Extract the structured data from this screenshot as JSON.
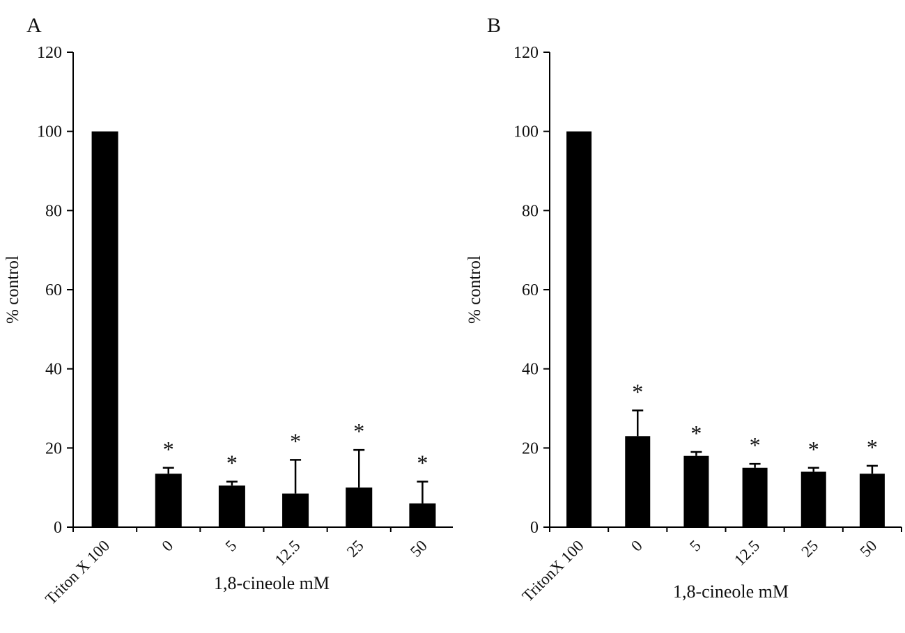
{
  "figure": {
    "background": "#ffffff",
    "bar_color": "#000000",
    "axis_color": "#000000",
    "text_color": "#111111"
  },
  "chart_data": [
    {
      "type": "bar",
      "panel_label": "A",
      "title": "",
      "ylabel": "% control",
      "xlabel": "1,8-cineole mM",
      "ylim": [
        0,
        120
      ],
      "yticks": [
        0,
        20,
        40,
        60,
        80,
        100,
        120
      ],
      "categories": [
        "Triton X 100",
        "0",
        "5",
        "12.5",
        "25",
        "50"
      ],
      "values": [
        100,
        13.5,
        10.5,
        8.5,
        10,
        6
      ],
      "errors": [
        0,
        1.5,
        1,
        8.5,
        9.5,
        5.5
      ],
      "significance": [
        "",
        "*",
        "*",
        "*",
        "*",
        "*"
      ],
      "grid": false,
      "legend": "none"
    },
    {
      "type": "bar",
      "panel_label": "B",
      "title": "",
      "ylabel": "% control",
      "xlabel": "1,8-cineole mM",
      "ylim": [
        0,
        120
      ],
      "yticks": [
        0,
        20,
        40,
        60,
        80,
        100,
        120
      ],
      "categories": [
        "TritonX 100",
        "0",
        "5",
        "12.5",
        "25",
        "50"
      ],
      "values": [
        100,
        23,
        18,
        15,
        14,
        13.5
      ],
      "errors": [
        0,
        6.5,
        1,
        1,
        1,
        2
      ],
      "significance": [
        "",
        "*",
        "*",
        "*",
        "*",
        "*"
      ],
      "grid": false,
      "legend": "none"
    }
  ]
}
